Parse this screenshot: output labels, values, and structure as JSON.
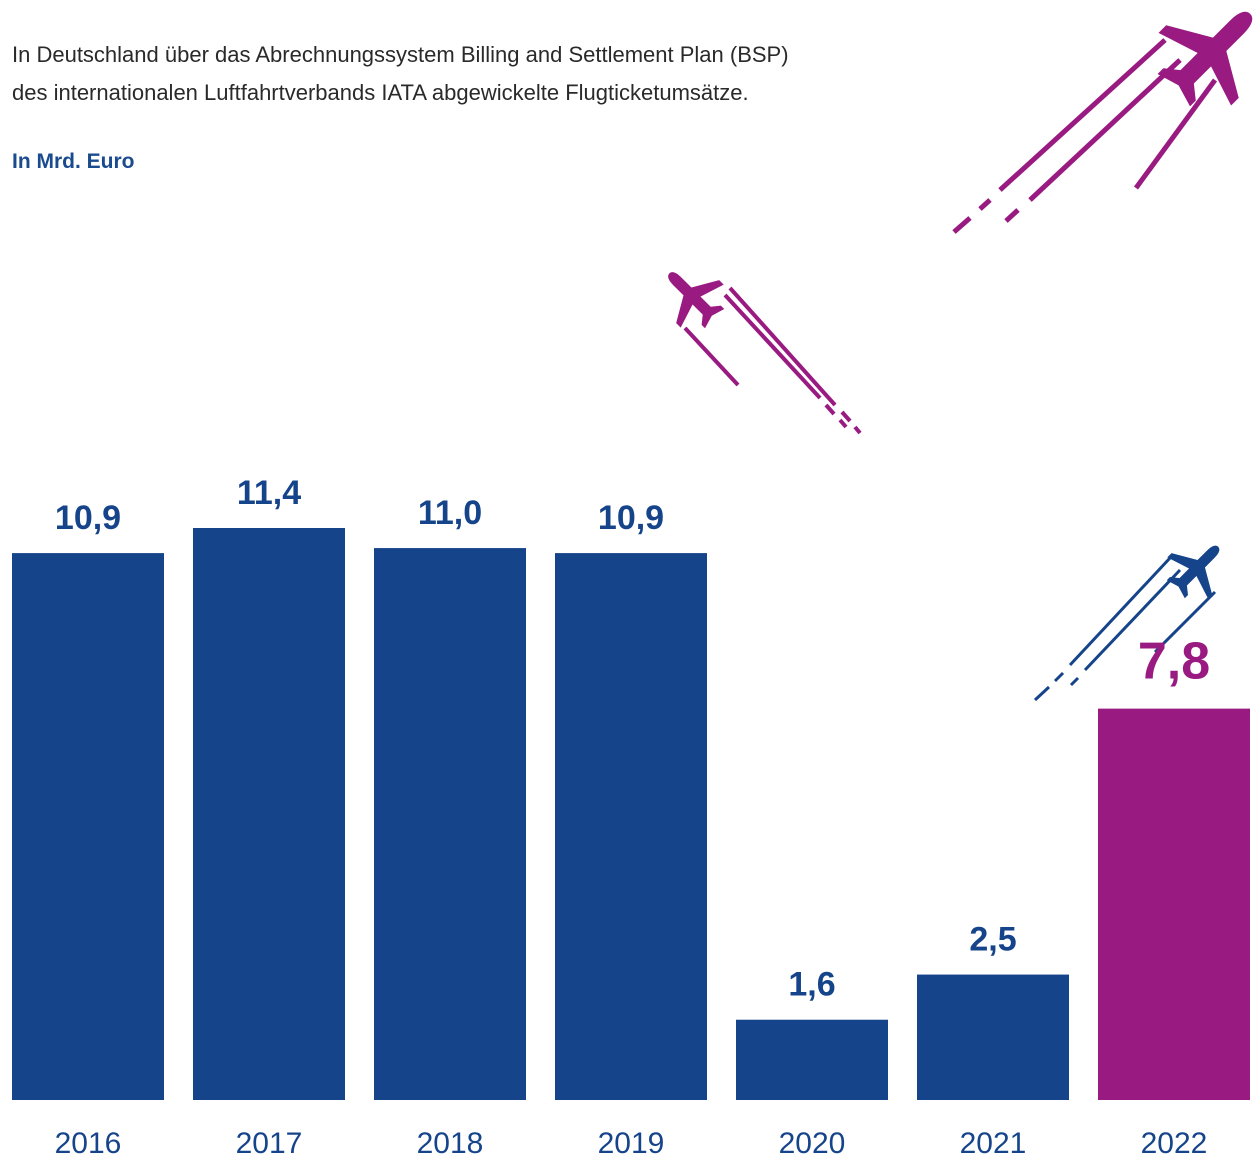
{
  "header": {
    "description_line1": "In Deutschland über das Abrechnungssystem Billing and Settlement Plan (BSP)",
    "description_line2": "des internationalen Luftfahrtverbands IATA abgewickelte Flugticketumsätze.",
    "unit_label": "In Mrd. Euro"
  },
  "colors": {
    "primary_bar": "#16448a",
    "highlight_bar": "#991a80",
    "label_blue": "#16448a",
    "label_purple": "#991a80",
    "axis_text": "#16448a"
  },
  "chart_data": {
    "type": "bar",
    "categories": [
      "2016",
      "2017",
      "2018",
      "2019",
      "2020",
      "2021",
      "2022"
    ],
    "values": [
      10.9,
      11.4,
      11.0,
      10.9,
      1.6,
      2.5,
      7.8
    ],
    "value_labels": [
      "10,9",
      "11,4",
      "11,0",
      "10,9",
      "1,6",
      "2,5",
      "7,8"
    ],
    "highlight_index": 6,
    "title": "",
    "xlabel": "",
    "ylabel": "In Mrd. Euro",
    "ylim": [
      0,
      11.4
    ],
    "grid": false,
    "legend": "none"
  },
  "decorations": {
    "icons": [
      "airplane-icon",
      "airplane-icon",
      "airplane-icon"
    ]
  }
}
